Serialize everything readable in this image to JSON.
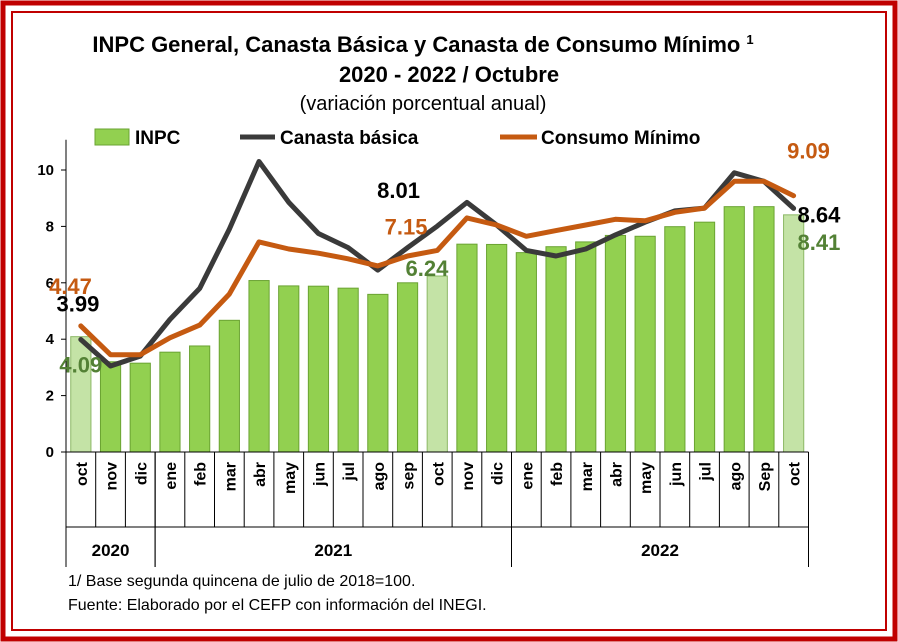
{
  "chart_data": {
    "type": "bar",
    "title": "INPC General, Canasta Básica  y Canasta de Consumo Mínimo",
    "title_superscript": "1",
    "subtitle": "2020 - 2022 / Octubre",
    "subtitle2": "(variación porcentual anual)",
    "categories": [
      "oct",
      "nov",
      "dic",
      "ene",
      "feb",
      "mar",
      "abr",
      "may",
      "jun",
      "jul",
      "ago",
      "sep",
      "oct",
      "nov",
      "dic",
      "ene",
      "feb",
      "mar",
      "abr",
      "may",
      "jun",
      "jul",
      "ago",
      "Sep",
      "oct"
    ],
    "years": [
      {
        "label": "2020",
        "start": 0,
        "end": 2
      },
      {
        "label": "2021",
        "start": 3,
        "end": 14
      },
      {
        "label": "2022",
        "start": 15,
        "end": 24
      }
    ],
    "highlight_indices": [
      0,
      12,
      24
    ],
    "ylim": [
      0,
      11
    ],
    "yticks": [
      0,
      2,
      4,
      6,
      8,
      10
    ],
    "grid": false,
    "legend_position": "top",
    "series": [
      {
        "name": "INPC",
        "kind": "bar",
        "color": "#92d050",
        "highlight_color": "#c4e3a6",
        "values": [
          4.09,
          3.2,
          3.15,
          3.54,
          3.76,
          4.67,
          6.08,
          5.89,
          5.88,
          5.81,
          5.59,
          6.0,
          6.24,
          7.37,
          7.36,
          7.07,
          7.28,
          7.45,
          7.68,
          7.65,
          7.99,
          8.15,
          8.7,
          8.7,
          8.41
        ]
      },
      {
        "name": "Canasta básica",
        "kind": "line",
        "color": "#3a3a3a",
        "values": [
          3.99,
          3.05,
          3.4,
          4.7,
          5.8,
          7.9,
          10.3,
          8.85,
          7.75,
          7.25,
          6.45,
          7.25,
          8.01,
          8.85,
          8.05,
          7.15,
          6.95,
          7.2,
          7.7,
          8.15,
          8.55,
          8.65,
          9.9,
          9.6,
          8.64
        ]
      },
      {
        "name": "Consumo Mínimo",
        "kind": "line",
        "color": "#c55a11",
        "values": [
          4.47,
          3.45,
          3.45,
          4.05,
          4.5,
          5.6,
          7.45,
          7.2,
          7.05,
          6.85,
          6.6,
          6.95,
          7.15,
          8.3,
          8.05,
          7.65,
          7.85,
          8.05,
          8.25,
          8.2,
          8.5,
          8.65,
          9.6,
          9.6,
          9.09
        ]
      }
    ],
    "data_labels": [
      {
        "text": "4.47",
        "series": "Consumo Mínimo",
        "index": 0,
        "color": "#c55a11"
      },
      {
        "text": "3.99",
        "series": "Canasta básica",
        "index": 0,
        "color": "#000000"
      },
      {
        "text": "4.09",
        "series": "INPC",
        "index": 0,
        "color": "#538135"
      },
      {
        "text": "8.01",
        "series": "Canasta básica",
        "index": 12,
        "color": "#000000"
      },
      {
        "text": "7.15",
        "series": "Consumo Mínimo",
        "index": 12,
        "color": "#c55a11"
      },
      {
        "text": "6.24",
        "series": "INPC",
        "index": 12,
        "color": "#538135"
      },
      {
        "text": "9.09",
        "series": "Consumo Mínimo",
        "index": 24,
        "color": "#c55a11"
      },
      {
        "text": "8.64",
        "series": "Canasta básica",
        "index": 24,
        "color": "#000000"
      },
      {
        "text": "8.41",
        "series": "INPC",
        "index": 24,
        "color": "#538135"
      }
    ],
    "footnotes": [
      "1/ Base segunda quincena de julio de 2018=100.",
      "Fuente: Elaborado por el CEFP con información del INEGI."
    ]
  },
  "colors": {
    "frame_outer": "#c00000",
    "frame_inner": "#c00000",
    "axis": "#000000"
  }
}
